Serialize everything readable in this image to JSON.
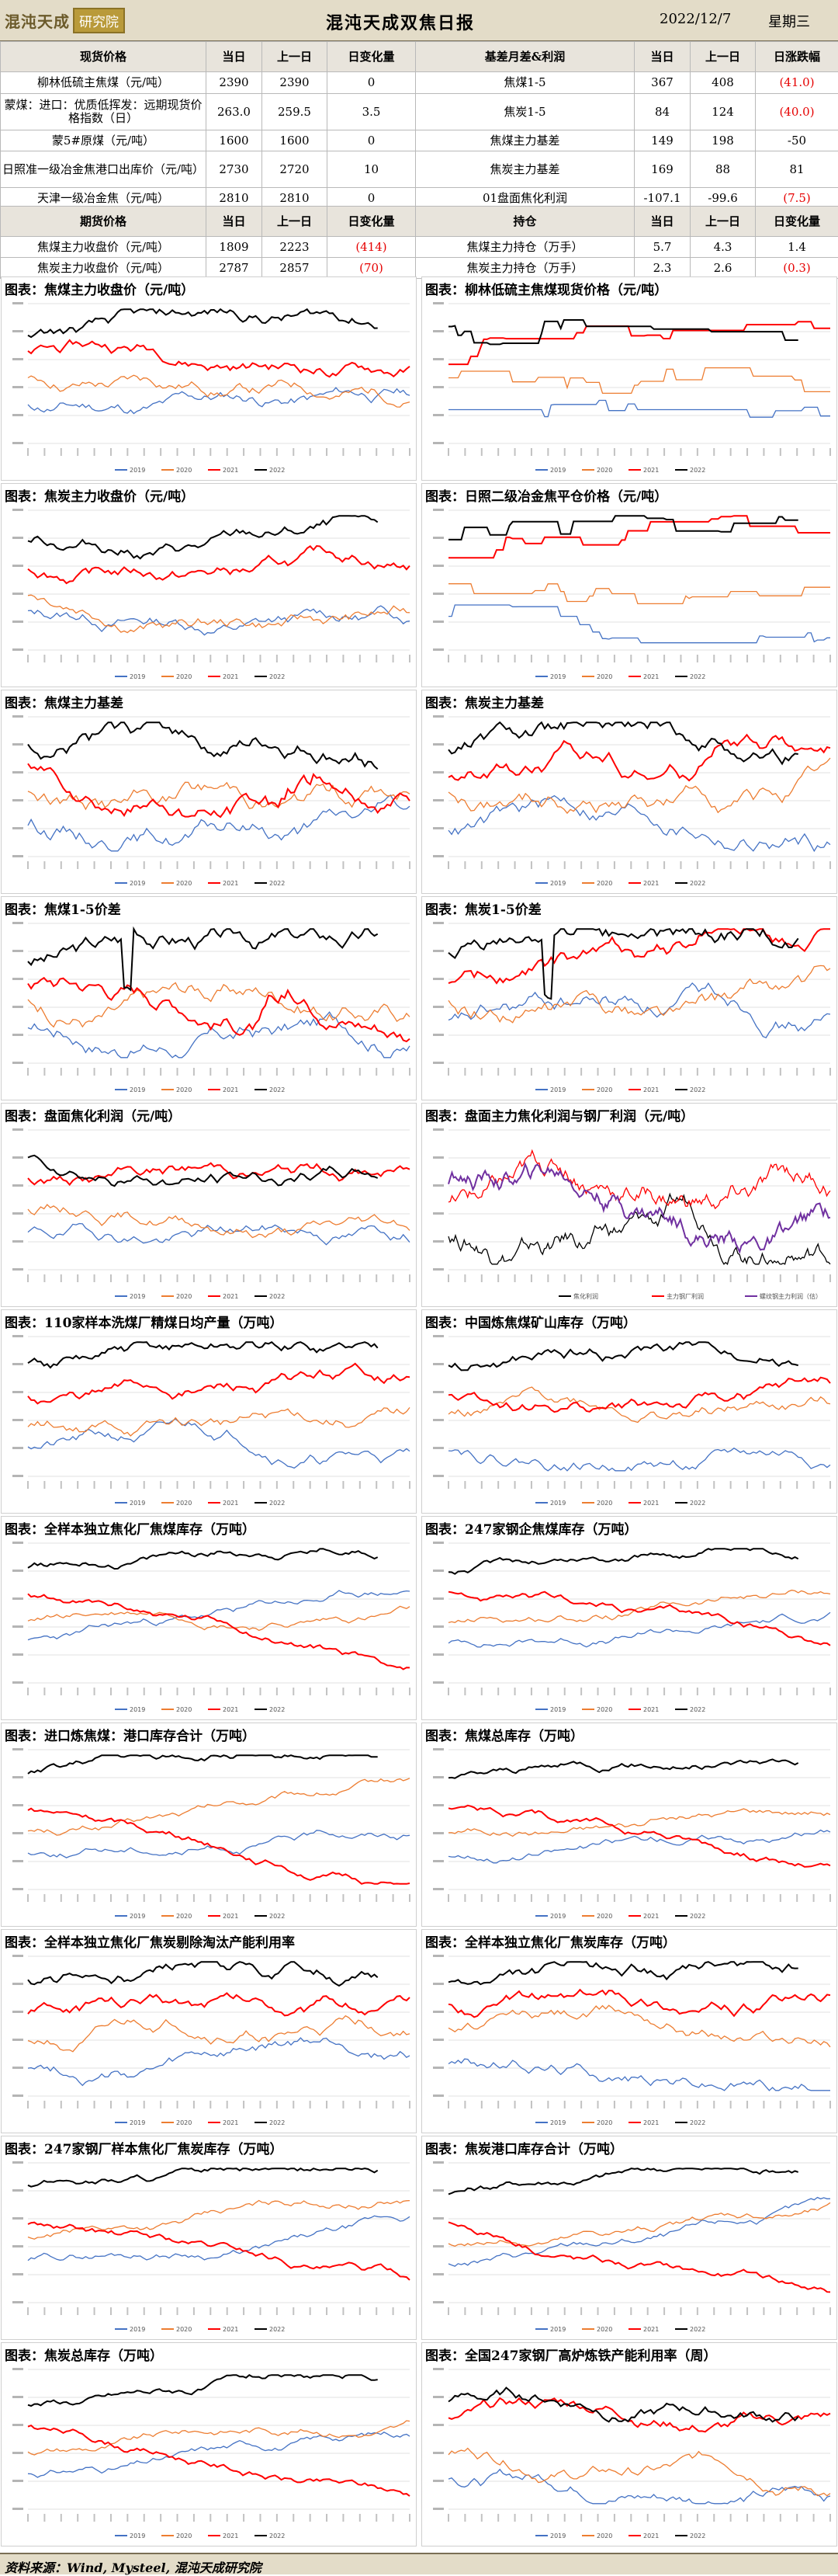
{
  "header": {
    "logo_text": "混沌天成",
    "logo_box": "研究院",
    "title": "混沌天成双焦日报",
    "date": "2022/12/7",
    "weekday": "星期三"
  },
  "table1": {
    "headers": [
      "现货价格",
      "当日",
      "上一日",
      "日变化量",
      "基差月差&利润",
      "当日",
      "上一日",
      "日涨跌幅"
    ],
    "rows": [
      [
        "柳林低硫主焦煤（元/吨）",
        "2390",
        "2390",
        "0",
        "焦煤1-5",
        "367",
        "408",
        "(41.0)"
      ],
      [
        "蒙煤：进口：优质低挥发：远期现货价格指数（日）",
        "263.0",
        "259.5",
        "3.5",
        "焦炭1-5",
        "84",
        "124",
        "(40.0)"
      ],
      [
        "蒙5#原煤（元/吨）",
        "1600",
        "1600",
        "0",
        "焦煤主力基差",
        "149",
        "198",
        "-50"
      ],
      [
        "日照准一级冶金焦港口出库价（元/吨）",
        "2730",
        "2720",
        "10",
        "焦炭主力基差",
        "169",
        "88",
        "81"
      ],
      [
        "天津一级冶金焦（元/吨）",
        "2810",
        "2810",
        "0",
        "01盘面焦化利润",
        "-107.1",
        "-99.6",
        "(7.5)"
      ]
    ],
    "red_cells": [
      "0-7",
      "1-7",
      "4-7"
    ]
  },
  "table2": {
    "headers": [
      "期货价格",
      "当日",
      "上一日",
      "日变化量",
      "持仓",
      "当日",
      "上一日",
      "日变化量"
    ],
    "rows": [
      [
        "焦煤主力收盘价（元/吨）",
        "1809",
        "2223",
        "(414)",
        "焦煤主力持仓（万手）",
        "5.7",
        "4.3",
        "1.4"
      ],
      [
        "焦炭主力收盘价（元/吨）",
        "2787",
        "2857",
        "(70)",
        "焦炭主力持仓（万手）",
        "2.3",
        "2.6",
        "(0.3)"
      ]
    ],
    "red_cells": [
      "0-3",
      "1-3",
      "1-7"
    ]
  },
  "series_colors": {
    "c2019": "#4472c4",
    "c2020": "#ed7d31",
    "c2021": "#ff0000",
    "c2022": "#000000"
  },
  "charts": [
    {
      "title": "图表：焦煤主力收盘价（元/吨）",
      "legend": [
        "2019",
        "2020",
        "2021",
        "2022"
      ],
      "seed": 11,
      "shape": "coking"
    },
    {
      "title": "图表：柳林低硫主焦煤现货价格（元/吨）",
      "legend": [
        "2019",
        "2020",
        "2021",
        "2022"
      ],
      "seed": 12,
      "shape": "step"
    },
    {
      "title": "图表：焦炭主力收盘价（元/吨）",
      "legend": [
        "2019",
        "2020",
        "2021",
        "2022"
      ],
      "seed": 13,
      "shape": "coking"
    },
    {
      "title": "图表：日照二级冶金焦平仓价格（元/吨）",
      "legend": [
        "2019",
        "2020",
        "2021",
        "2022"
      ],
      "seed": 14,
      "shape": "step"
    },
    {
      "title": "图表：焦煤主力基差",
      "legend": [
        "2019",
        "2020",
        "2021",
        "2022"
      ],
      "seed": 15,
      "shape": "basis"
    },
    {
      "title": "图表：焦炭主力基差",
      "legend": [
        "2019",
        "2020",
        "2021",
        "2022"
      ],
      "seed": 16,
      "shape": "basis"
    },
    {
      "title": "图表：焦煤1-5价差",
      "legend": [
        "2019",
        "2020",
        "2021",
        "2022"
      ],
      "seed": 17,
      "shape": "spread"
    },
    {
      "title": "图表：焦炭1-5价差",
      "legend": [
        "2019",
        "2020",
        "2021",
        "2022"
      ],
      "seed": 18,
      "shape": "spread"
    },
    {
      "title": "图表：盘面焦化利润（元/吨）",
      "legend": [
        "2019",
        "2020",
        "2021",
        "2022"
      ],
      "seed": 19,
      "shape": "profit"
    },
    {
      "title": "图表：盘面主力焦化利润与钢厂利润（元/吨）",
      "legend": [
        "焦化利润",
        "主力钢厂利润",
        "螺纹钢主力利润（估）"
      ],
      "seed": 20,
      "shape": "dense"
    },
    {
      "title": "图表：110家样本洗煤厂精煤日均产量（万吨）",
      "legend": [
        "2019",
        "2020",
        "2021",
        "2022"
      ],
      "seed": 21,
      "shape": "wave"
    },
    {
      "title": "图表：中国炼焦煤矿山库存（万吨）",
      "legend": [
        "2019",
        "2020",
        "2021",
        "2022"
      ],
      "seed": 22,
      "shape": "wave"
    },
    {
      "title": "图表：全样本独立焦化厂焦煤库存（万吨）",
      "legend": [
        "2019",
        "2020",
        "2021",
        "2022"
      ],
      "seed": 23,
      "shape": "inventory"
    },
    {
      "title": "图表：247家钢企焦煤库存（万吨）",
      "legend": [
        "2019",
        "2020",
        "2021",
        "2022"
      ],
      "seed": 24,
      "shape": "inventory"
    },
    {
      "title": "图表：进口炼焦煤：港口库存合计（万吨）",
      "legend": [
        "2019",
        "2020",
        "2021",
        "2022"
      ],
      "seed": 25,
      "shape": "inventory"
    },
    {
      "title": "图表：焦煤总库存（万吨）",
      "legend": [
        "2019",
        "2020",
        "2021",
        "2022"
      ],
      "seed": 26,
      "shape": "inventory"
    },
    {
      "title": "图表：全样本独立焦化厂焦炭剔除淘汰产能利用率",
      "legend": [
        "2019",
        "2020",
        "2021",
        "2022"
      ],
      "seed": 27,
      "shape": "wave"
    },
    {
      "title": "图表：全样本独立焦化厂焦炭库存（万吨）",
      "legend": [
        "2019",
        "2020",
        "2021",
        "2022"
      ],
      "seed": 28,
      "shape": "wave"
    },
    {
      "title": "图表：247家钢厂样本焦化厂焦炭库存（万吨）",
      "legend": [
        "2019",
        "2020",
        "2021",
        "2022"
      ],
      "seed": 29,
      "shape": "inventory"
    },
    {
      "title": "图表：焦炭港口库存合计（万吨）",
      "legend": [
        "2019",
        "2020",
        "2021",
        "2022"
      ],
      "seed": 30,
      "shape": "inventory"
    },
    {
      "title": "图表：焦炭总库存（万吨）",
      "legend": [
        "2019",
        "2020",
        "2021",
        "2022"
      ],
      "seed": 31,
      "shape": "inventory"
    },
    {
      "title": "图表：全国247家钢厂高炉炼铁产能利用率（周）",
      "legend": [
        "2019",
        "2020",
        "2021",
        "2022"
      ],
      "seed": 32,
      "shape": "wave"
    }
  ],
  "footer": {
    "source": "资料来源：Wind, Mysteel, 混沌天成研究院"
  }
}
